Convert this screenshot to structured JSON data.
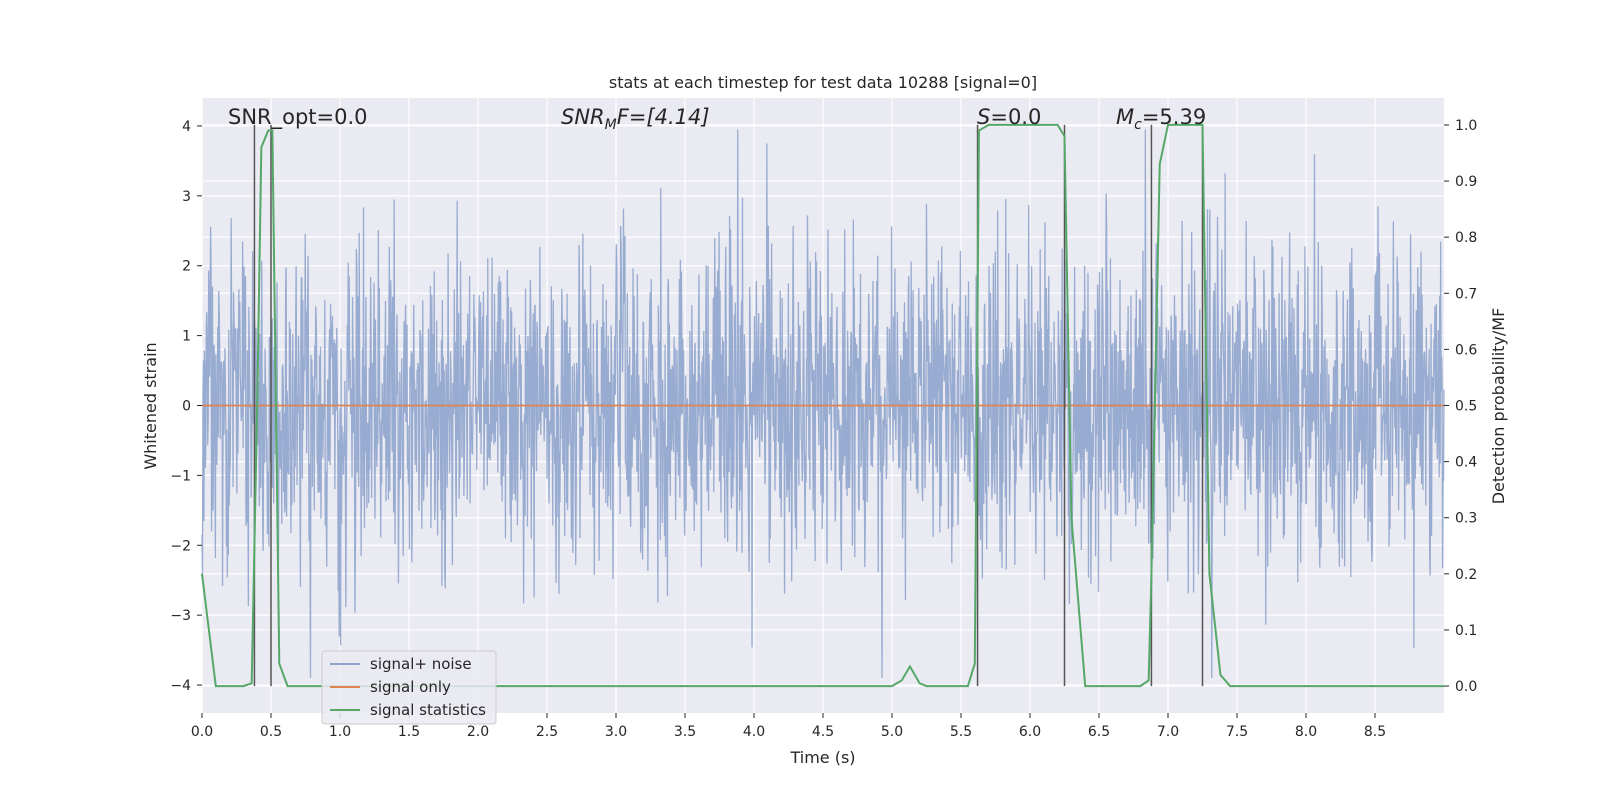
{
  "chart_data": {
    "type": "line",
    "title": "stats at each timestep for test data 10288 [signal=0]",
    "xlabel": "Time (s)",
    "ylabel": "Whitened strain",
    "ylabel_right": "Detection probability/MF",
    "xlim": [
      0,
      9
    ],
    "ylim": [
      -4.4,
      4.4
    ],
    "ylim_right": [
      -0.048,
      1.048
    ],
    "x_ticks": [
      "0.0",
      "0.5",
      "1.0",
      "1.5",
      "2.0",
      "2.5",
      "3.0",
      "3.5",
      "4.0",
      "4.5",
      "5.0",
      "5.5",
      "6.0",
      "6.5",
      "7.0",
      "7.5",
      "8.0",
      "8.5"
    ],
    "y_ticks": [
      "−4",
      "−3",
      "−2",
      "−1",
      "0",
      "1",
      "2",
      "3",
      "4"
    ],
    "y_ticks_right": [
      "0.0",
      "0.1",
      "0.2",
      "0.3",
      "0.4",
      "0.5",
      "0.6",
      "0.7",
      "0.8",
      "0.9",
      "1.0"
    ],
    "grid": true,
    "legend_position": "lower-left",
    "annotations": {
      "snr_opt": "SNR_opt=0.0",
      "snr_mf_label": "SNR",
      "snr_mf_sub": "M",
      "snr_mf_rest": "F=[4.14]",
      "s_label": "S",
      "s_rest": "=0.0",
      "mc_label": "M",
      "mc_sub": "c",
      "mc_rest": "=5.39"
    },
    "series": [
      {
        "name": "signal+ noise",
        "color": "#8fa4cc",
        "note_shape": "random noise, amplitude about ±1.5 with peaks near ±4"
      },
      {
        "name": "signal only",
        "color": "#dd8452",
        "x": [
          0,
          9
        ],
        "y": [
          0,
          0
        ]
      },
      {
        "name": "signal statistics",
        "color": "#55a868",
        "axis": "right",
        "x": [
          0.0,
          0.05,
          0.1,
          0.3,
          0.36,
          0.4,
          0.43,
          0.48,
          0.51,
          0.56,
          0.62,
          0.8,
          5.0,
          5.07,
          5.13,
          5.2,
          5.25,
          5.55,
          5.6,
          5.63,
          5.7,
          6.0,
          6.2,
          6.25,
          6.3,
          6.4,
          6.8,
          6.86,
          6.88,
          6.94,
          7.0,
          7.25,
          7.3,
          7.38,
          7.45,
          9.0
        ],
        "y": [
          0.2,
          0.1,
          0.0,
          0.0,
          0.005,
          0.5,
          0.96,
          0.99,
          0.99,
          0.04,
          0.0,
          0.0,
          0.0,
          0.01,
          0.035,
          0.005,
          0.0,
          0.0,
          0.04,
          0.99,
          1.0,
          1.0,
          1.0,
          0.98,
          0.3,
          0.0,
          0.0,
          0.01,
          0.2,
          0.93,
          1.0,
          1.0,
          0.2,
          0.02,
          0.0,
          0.0
        ]
      }
    ],
    "vlines": [
      0.38,
      0.5,
      5.62,
      6.25,
      6.88,
      7.25
    ],
    "vline_color": "#555555"
  }
}
